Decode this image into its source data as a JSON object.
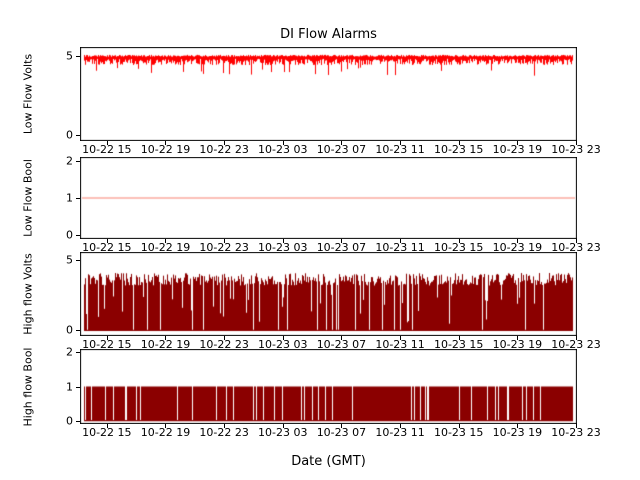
{
  "figure": {
    "title": "DI Flow Alarms",
    "xlabel": "Date (GMT)",
    "background": "#ffffff"
  },
  "chart_data": {
    "type": "line",
    "title": "DI Flow Alarms",
    "xlabel": "Date (GMT)",
    "x_tick_labels": [
      "10-22 15",
      "10-22 19",
      "10-22 23",
      "10-23 03",
      "10-23 07",
      "10-23 11",
      "10-23 15",
      "10-23 19",
      "10-23 23"
    ],
    "x_tick_interval": "4 hours",
    "grid": false,
    "legend": "none",
    "subplots": [
      {
        "name": "low-flow-volts",
        "ylabel": "Low Flow Volts",
        "color": "#ff0000",
        "yticks": [
          0,
          5
        ],
        "ylim": [
          -0.4,
          5.6
        ],
        "signal": {
          "kind": "noisy_top",
          "description": "dense noisy voltage hugging 5 V with downward spikes",
          "max": 5.1,
          "typical_min": 4.45,
          "spike_min": 3.7
        }
      },
      {
        "name": "low-flow-bool",
        "ylabel": "Low Flow Bool",
        "color": "#fa8072",
        "yticks": [
          0,
          1,
          2
        ],
        "ylim": [
          -0.1,
          2.1
        ],
        "signal": {
          "kind": "constant",
          "description": "flat line, alarm boolean constant at 1",
          "value": 1.0
        }
      },
      {
        "name": "high-flow-volts",
        "ylabel": "High flow Volts",
        "color": "#8b0000",
        "yticks": [
          0,
          5
        ],
        "ylim": [
          -0.4,
          5.6
        ],
        "signal": {
          "kind": "dense",
          "description": "dense oscillation between 0 and ~4 V with brief white dropouts",
          "min": 0.0,
          "typical_max": 4.1,
          "gap_probability": 0.05
        }
      },
      {
        "name": "high-flow-bool",
        "ylabel": "High flow Bool",
        "color": "#8b0000",
        "yticks": [
          0,
          1,
          2
        ],
        "ylim": [
          -0.1,
          2.1
        ],
        "signal": {
          "kind": "binary",
          "description": "boolean toggling rapidly between 0 and 1 with short gaps",
          "low": 0.0,
          "high": 1.0,
          "duty": 0.9
        }
      }
    ]
  }
}
